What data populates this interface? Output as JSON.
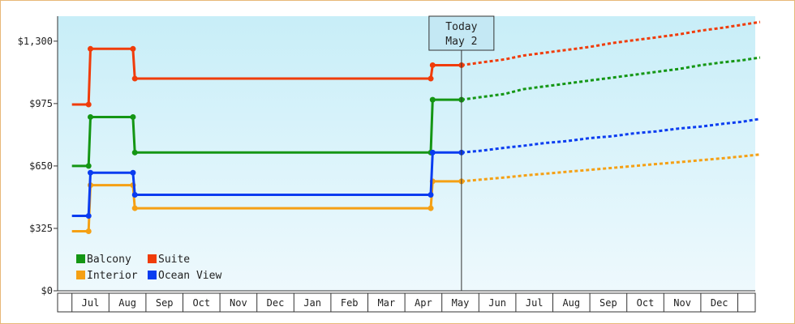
{
  "chart_data": {
    "type": "line",
    "title": "",
    "xlabel": "",
    "ylabel": "",
    "ylim": [
      0,
      1430
    ],
    "yticks": [
      {
        "value": 0,
        "label": "$0"
      },
      {
        "value": 325,
        "label": "$325"
      },
      {
        "value": 650,
        "label": "$650"
      },
      {
        "value": 975,
        "label": "$975"
      },
      {
        "value": 1300,
        "label": "$1,300"
      }
    ],
    "x_months": [
      "Jul",
      "Aug",
      "Sep",
      "Oct",
      "Nov",
      "Dec",
      "Jan",
      "Feb",
      "Mar",
      "Apr",
      "May",
      "Jun",
      "Jul",
      "Aug",
      "Sep",
      "Oct",
      "Nov",
      "Dec"
    ],
    "today": {
      "line1": "Today",
      "line2": "May 2",
      "x": 10.03
    },
    "legend": {
      "position": "bottom-left"
    },
    "colors": {
      "plot_top": "#c8eef8",
      "plot_bottom": "#eef9fd",
      "frame": "#e8b878"
    },
    "series": [
      {
        "name": "Balcony",
        "color": "#149614",
        "history": [
          [
            -0.5,
            650
          ],
          [
            -0.05,
            650
          ],
          [
            0.0,
            905
          ],
          [
            1.15,
            905
          ],
          [
            1.2,
            720
          ],
          [
            9.2,
            720
          ],
          [
            9.25,
            995
          ],
          [
            10.03,
            995
          ]
        ],
        "forecast": [
          [
            10.03,
            995
          ],
          [
            10.6,
            1010
          ],
          [
            11.2,
            1025
          ],
          [
            11.7,
            1050
          ],
          [
            12.3,
            1065
          ],
          [
            12.9,
            1080
          ],
          [
            13.5,
            1095
          ],
          [
            14.1,
            1110
          ],
          [
            14.7,
            1125
          ],
          [
            15.3,
            1140
          ],
          [
            15.9,
            1155
          ],
          [
            16.5,
            1175
          ],
          [
            17.1,
            1190
          ],
          [
            17.6,
            1200
          ],
          [
            18.1,
            1215
          ]
        ]
      },
      {
        "name": "Suite",
        "color": "#f03c0a",
        "history": [
          [
            -0.5,
            970
          ],
          [
            -0.05,
            970
          ],
          [
            0.0,
            1260
          ],
          [
            1.15,
            1260
          ],
          [
            1.2,
            1105
          ],
          [
            9.2,
            1105
          ],
          [
            9.25,
            1175
          ],
          [
            10.03,
            1175
          ]
        ],
        "forecast": [
          [
            10.03,
            1175
          ],
          [
            10.6,
            1190
          ],
          [
            11.2,
            1205
          ],
          [
            11.7,
            1225
          ],
          [
            12.3,
            1240
          ],
          [
            12.9,
            1255
          ],
          [
            13.5,
            1270
          ],
          [
            14.1,
            1290
          ],
          [
            14.7,
            1305
          ],
          [
            15.3,
            1320
          ],
          [
            15.9,
            1335
          ],
          [
            16.5,
            1355
          ],
          [
            17.1,
            1370
          ],
          [
            17.6,
            1385
          ],
          [
            18.1,
            1400
          ]
        ]
      },
      {
        "name": "Interior",
        "color": "#f5a014",
        "history": [
          [
            -0.5,
            310
          ],
          [
            -0.05,
            310
          ],
          [
            0.0,
            550
          ],
          [
            1.15,
            550
          ],
          [
            1.2,
            430
          ],
          [
            9.2,
            430
          ],
          [
            9.25,
            570
          ],
          [
            10.03,
            570
          ]
        ],
        "forecast": [
          [
            10.03,
            570
          ],
          [
            10.6,
            580
          ],
          [
            11.2,
            590
          ],
          [
            11.7,
            600
          ],
          [
            12.3,
            610
          ],
          [
            12.9,
            620
          ],
          [
            13.5,
            630
          ],
          [
            14.1,
            640
          ],
          [
            14.7,
            650
          ],
          [
            15.3,
            660
          ],
          [
            15.9,
            670
          ],
          [
            16.5,
            680
          ],
          [
            17.1,
            690
          ],
          [
            17.6,
            700
          ],
          [
            18.1,
            710
          ]
        ]
      },
      {
        "name": "Ocean View",
        "color": "#0a3cf0",
        "history": [
          [
            -0.5,
            390
          ],
          [
            -0.05,
            390
          ],
          [
            0.0,
            615
          ],
          [
            1.15,
            615
          ],
          [
            1.2,
            500
          ],
          [
            9.2,
            500
          ],
          [
            9.25,
            720
          ],
          [
            10.03,
            720
          ]
        ],
        "forecast": [
          [
            10.03,
            720
          ],
          [
            10.6,
            730
          ],
          [
            11.2,
            745
          ],
          [
            11.7,
            755
          ],
          [
            12.3,
            770
          ],
          [
            12.9,
            780
          ],
          [
            13.5,
            795
          ],
          [
            14.1,
            805
          ],
          [
            14.7,
            820
          ],
          [
            15.3,
            830
          ],
          [
            15.9,
            845
          ],
          [
            16.5,
            855
          ],
          [
            17.1,
            870
          ],
          [
            17.6,
            880
          ],
          [
            18.1,
            895
          ]
        ]
      }
    ]
  }
}
